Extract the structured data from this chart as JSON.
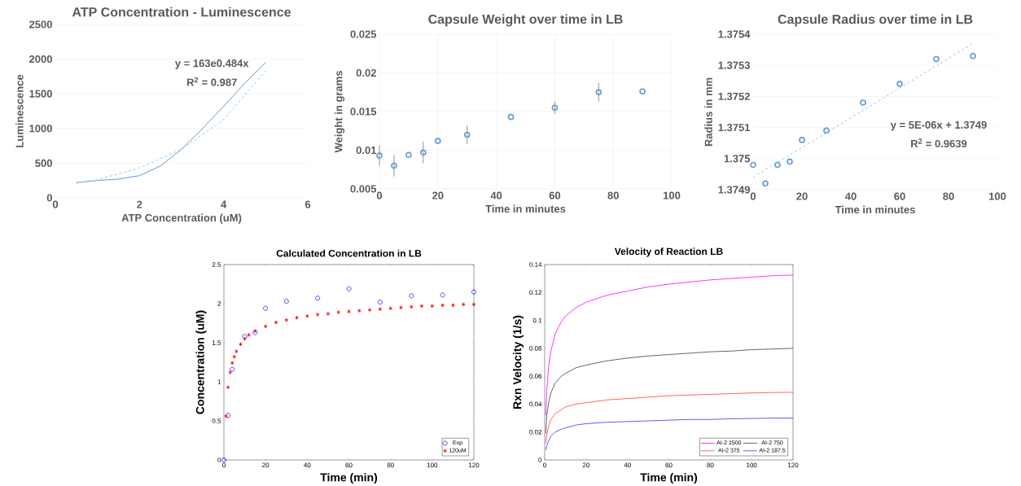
{
  "chart_data": [
    {
      "type": "line",
      "title": "ATP Concentration - Luminescence",
      "xlabel": "ATP Concentration (uM)",
      "ylabel": "Luminescence",
      "xlim": [
        0,
        6
      ],
      "xticks": [
        0,
        2,
        4,
        6
      ],
      "ylim": [
        0,
        2500
      ],
      "yticks": [
        0,
        500,
        1000,
        1500,
        2000,
        2500
      ],
      "grid": "y",
      "annotations": [
        "y = 163e0.484x",
        "R$^{2}$ = 0.987"
      ],
      "series": [
        {
          "color": "#5b9bd5",
          "x": [
            0.5,
            1,
            1.5,
            2,
            2.5,
            3,
            3.5,
            4,
            4.5,
            5
          ],
          "values": [
            220,
            250,
            270,
            320,
            460,
            700,
            1000,
            1320,
            1650,
            1950
          ]
        },
        {
          "color": "#9dc3e6",
          "line_style": "dashed",
          "x": [
            0.5,
            1,
            2,
            3,
            4,
            5
          ],
          "values": [
            210,
            260,
            430,
            700,
            1130,
            1830
          ]
        }
      ]
    },
    {
      "type": "scatter",
      "title": "Capsule Weight over time in LB",
      "xlabel": "Time in minutes",
      "ylabel": "Weight in grams",
      "xlim": [
        0,
        100
      ],
      "xticks": [
        0,
        20,
        40,
        60,
        80,
        100
      ],
      "ylim": [
        0.005,
        0.025
      ],
      "yticks": [
        0.005,
        0.01,
        0.015,
        0.02,
        0.025
      ],
      "grid": true,
      "marker": "circle",
      "series": [
        {
          "color": "#5b9bd5",
          "x": [
            0,
            5,
            10,
            15,
            20,
            30,
            45,
            60,
            75,
            90
          ],
          "values": [
            0.0093,
            0.008,
            0.0094,
            0.0097,
            0.0112,
            0.012,
            0.0143,
            0.0155,
            0.0175,
            0.0176
          ],
          "errors": [
            0.0013,
            0.0014,
            null,
            0.0014,
            null,
            0.0012,
            null,
            0.0008,
            0.0012,
            null
          ]
        }
      ]
    },
    {
      "type": "scatter",
      "title": "Capsule Radius over time in LB",
      "xlabel": "Time in minutes",
      "ylabel": "Radius in mm",
      "xlim": [
        0,
        100
      ],
      "xticks": [
        0,
        20,
        40,
        60,
        80,
        100
      ],
      "ylim": [
        1.3749,
        1.3754
      ],
      "yticks": [
        1.3749,
        1.375,
        1.3751,
        1.3752,
        1.3753,
        1.3754
      ],
      "grid": "y",
      "marker": "circle",
      "annotations": [
        "y = 5E-06x + 1.3749",
        "R$^{2}$ = 0.9639"
      ],
      "series": [
        {
          "color": "#5b9bd5",
          "x": [
            0,
            5,
            10,
            15,
            20,
            30,
            45,
            60,
            75,
            90
          ],
          "values": [
            1.37498,
            1.37492,
            1.37498,
            1.37499,
            1.37506,
            1.37509,
            1.37518,
            1.37524,
            1.37532,
            1.37533
          ]
        },
        {
          "type": "line",
          "marker": "none",
          "line_style": "dashed",
          "color": "#9dc3e6",
          "x": [
            0,
            90
          ],
          "values": [
            1.37494,
            1.37537
          ]
        }
      ]
    },
    {
      "type": "scatter",
      "title": "Calculated Concentration in LB",
      "xlabel": "Time (min)",
      "ylabel": "Concentration (uM)",
      "xlim": [
        0,
        120
      ],
      "xticks": [
        0,
        20,
        40,
        60,
        80,
        100,
        120
      ],
      "ylim": [
        0,
        2.5
      ],
      "yticks": [
        0,
        0.5,
        1,
        1.5,
        2,
        2.5
      ],
      "legend": "bottom right",
      "series": [
        {
          "name": "Exp",
          "color": "#0000ff",
          "marker": "circle",
          "x": [
            0,
            2,
            4,
            10,
            15,
            20,
            30,
            45,
            60,
            75,
            90,
            105,
            120
          ],
          "values": [
            0,
            0.57,
            1.16,
            1.58,
            1.63,
            1.94,
            2.03,
            2.07,
            2.19,
            2.02,
            2.1,
            2.11,
            2.15
          ]
        },
        {
          "name": "120uM",
          "color": "#ff0000",
          "marker": "cross",
          "x": [
            1,
            2,
            3,
            4,
            5,
            6,
            8,
            10,
            12,
            15,
            20,
            25,
            30,
            35,
            40,
            45,
            50,
            55,
            60,
            65,
            70,
            75,
            80,
            85,
            90,
            95,
            100,
            105,
            110,
            115,
            120
          ],
          "values": [
            0.56,
            0.93,
            1.12,
            1.24,
            1.32,
            1.39,
            1.48,
            1.55,
            1.6,
            1.65,
            1.71,
            1.76,
            1.79,
            1.82,
            1.84,
            1.86,
            1.87,
            1.89,
            1.9,
            1.91,
            1.92,
            1.93,
            1.94,
            1.95,
            1.96,
            1.97,
            1.97,
            1.98,
            1.98,
            1.99,
            1.99
          ]
        }
      ]
    },
    {
      "type": "line",
      "title": "Velocity of Reaction LB",
      "xlabel": "Time (min)",
      "ylabel": "Rxn Velocity (1/s)",
      "xlim": [
        0,
        120
      ],
      "xticks": [
        0,
        20,
        40,
        60,
        80,
        100,
        120
      ],
      "ylim": [
        0,
        0.14
      ],
      "yticks": [
        0,
        0.02,
        0.04,
        0.06,
        0.08,
        0.1,
        0.12,
        0.14
      ],
      "legend": "bottom right",
      "series": [
        {
          "name": "AI-2 1500",
          "color": "#ff00ff",
          "x": [
            0.5,
            1,
            2,
            3,
            5,
            8,
            10,
            15,
            20,
            30,
            40,
            50,
            60,
            70,
            80,
            90,
            100,
            110,
            120
          ],
          "values": [
            0.032,
            0.05,
            0.068,
            0.078,
            0.09,
            0.099,
            0.103,
            0.109,
            0.113,
            0.118,
            0.121,
            0.124,
            0.126,
            0.1275,
            0.129,
            0.13,
            0.131,
            0.132,
            0.1325
          ]
        },
        {
          "name": "AI-2 750",
          "color": "#404040",
          "x": [
            0.5,
            1,
            2,
            3,
            5,
            8,
            10,
            15,
            20,
            30,
            40,
            50,
            60,
            70,
            80,
            90,
            100,
            110,
            120
          ],
          "values": [
            0.019,
            0.032,
            0.042,
            0.048,
            0.055,
            0.06,
            0.062,
            0.066,
            0.068,
            0.071,
            0.073,
            0.0745,
            0.0755,
            0.0765,
            0.0775,
            0.078,
            0.079,
            0.0795,
            0.08
          ]
        },
        {
          "name": "AI-2 375",
          "color": "#ff4040",
          "x": [
            0.5,
            1,
            2,
            3,
            5,
            8,
            10,
            15,
            20,
            30,
            40,
            50,
            60,
            70,
            80,
            90,
            100,
            110,
            120
          ],
          "values": [
            0.012,
            0.018,
            0.025,
            0.029,
            0.033,
            0.036,
            0.038,
            0.04,
            0.041,
            0.043,
            0.044,
            0.045,
            0.046,
            0.0465,
            0.047,
            0.0475,
            0.048,
            0.0483,
            0.0485
          ]
        },
        {
          "name": "AI-2 187.5",
          "color": "#3333ff",
          "x": [
            0.5,
            1,
            2,
            3,
            5,
            8,
            10,
            15,
            20,
            30,
            40,
            50,
            60,
            70,
            80,
            90,
            100,
            110,
            120
          ],
          "values": [
            0.007,
            0.01,
            0.014,
            0.017,
            0.02,
            0.022,
            0.023,
            0.025,
            0.026,
            0.027,
            0.0275,
            0.028,
            0.0285,
            0.029,
            0.029,
            0.0295,
            0.0297,
            0.03,
            0.03
          ]
        }
      ]
    }
  ]
}
